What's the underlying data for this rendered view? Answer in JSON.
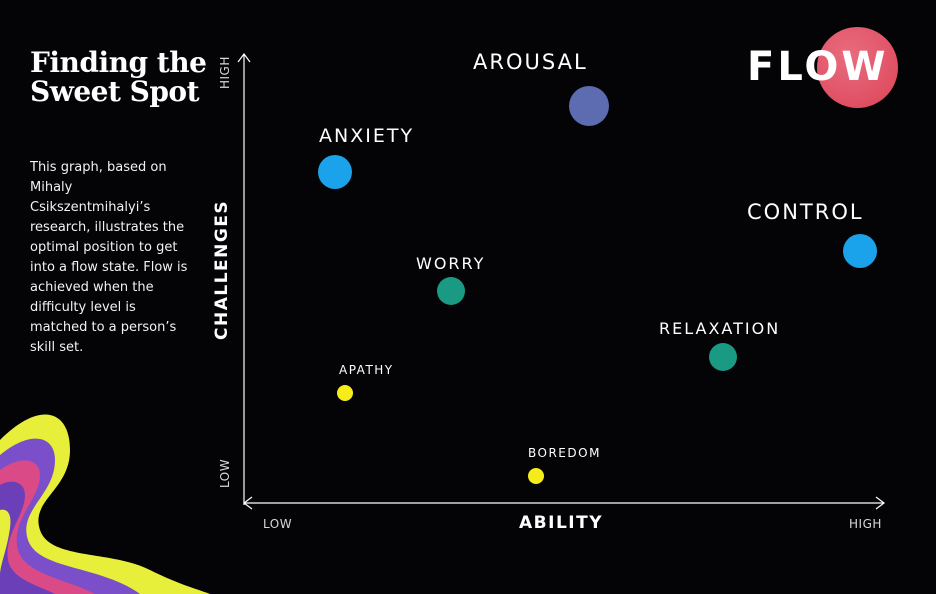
{
  "title": "Finding the Sweet Spot",
  "description": "This graph, based on Mihaly Csikszentmihalyi’s research, illustrates the optimal position to get into a flow state. Flow is achieved when the difficulty level is matched to a person’s skill set.",
  "axes": {
    "y_title": "CHALLENGES",
    "x_title": "ABILITY",
    "y_high": "HIGH",
    "y_low": "LOW",
    "x_low": "LOW",
    "x_high": "HIGH"
  },
  "flow_label": "FLOW",
  "states": [
    {
      "label": "AROUSAL",
      "color": "#5d6bb0"
    },
    {
      "label": "ANXIETY",
      "color": "#1aa3ea"
    },
    {
      "label": "CONTROL",
      "color": "#1aa3ea"
    },
    {
      "label": "WORRY",
      "color": "#1a9a82"
    },
    {
      "label": "RELAXATION",
      "color": "#1a9a82"
    },
    {
      "label": "APATHY",
      "color": "#f5ec19"
    },
    {
      "label": "BOREDOM",
      "color": "#f5ec19"
    }
  ],
  "colors": {
    "background": "#040407",
    "flow": "#e45a6d",
    "swirl": [
      "#e7ef3a",
      "#7a4fc9",
      "#d94a87"
    ]
  }
}
